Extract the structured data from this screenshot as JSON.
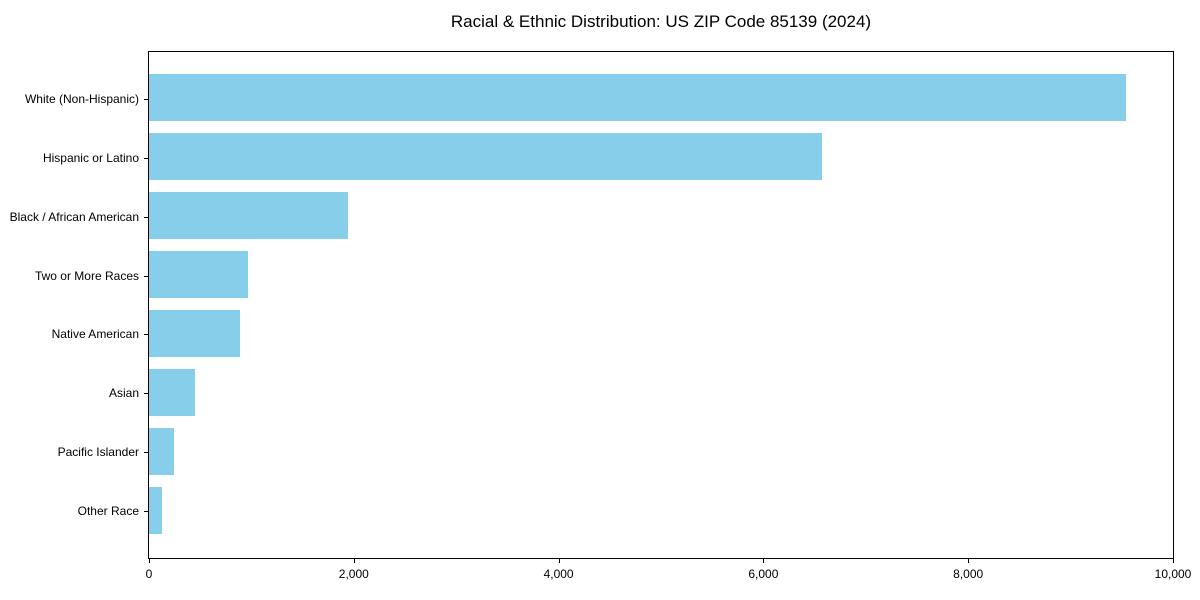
{
  "title": "Racial & Ethnic Distribution: US ZIP Code 85139 (2024)",
  "chart_data": {
    "type": "bar",
    "orientation": "horizontal",
    "title": "Racial & Ethnic Distribution: US ZIP Code 85139 (2024)",
    "categories": [
      "White (Non-Hispanic)",
      "Hispanic or Latino",
      "Black / African American",
      "Two or More Races",
      "Native American",
      "Asian",
      "Pacific Islander",
      "Other Race"
    ],
    "values": [
      9540,
      6570,
      1945,
      970,
      885,
      450,
      248,
      124
    ],
    "xlabel": "",
    "ylabel": "",
    "xlim": [
      0,
      10000
    ],
    "x_ticks": [
      0,
      2000,
      4000,
      6000,
      8000,
      10000
    ],
    "x_tick_labels": [
      "0",
      "2,000",
      "4,000",
      "6,000",
      "8,000",
      "10,000"
    ],
    "bar_color": "#87CEEB",
    "grid": false,
    "legend_position": "none",
    "plot_background": "#ffffff"
  }
}
